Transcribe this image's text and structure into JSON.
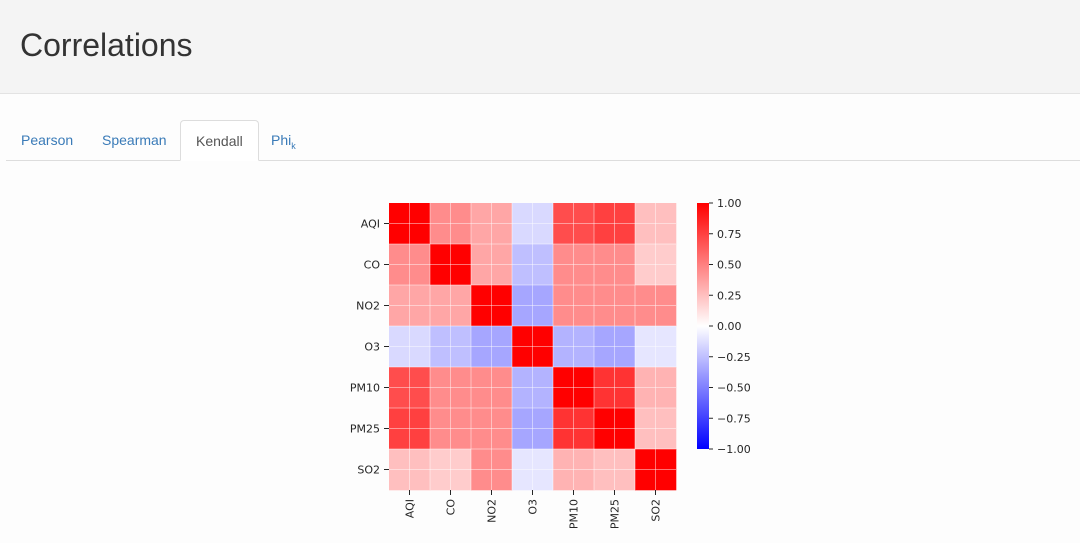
{
  "page": {
    "title": "Correlations"
  },
  "tabs": [
    {
      "label": "Pearson",
      "sub": ""
    },
    {
      "label": "Spearman",
      "sub": ""
    },
    {
      "label": "Kendall",
      "sub": ""
    },
    {
      "label": "Phi",
      "sub": "k"
    }
  ],
  "active_tab": "Kendall",
  "colors": {
    "positive": "#ff0000",
    "neutral": "#ffffff",
    "negative": "#0000ff",
    "tab_link": "#3a7bb8"
  },
  "chart_data": {
    "type": "heatmap",
    "title": "",
    "variables": [
      "AQI",
      "CO",
      "NO2",
      "O3",
      "PM10",
      "PM25",
      "SO2"
    ],
    "matrix": [
      [
        1.0,
        0.45,
        0.35,
        -0.15,
        0.7,
        0.75,
        0.25
      ],
      [
        0.45,
        1.0,
        0.35,
        -0.25,
        0.45,
        0.45,
        0.2
      ],
      [
        0.35,
        0.35,
        1.0,
        -0.35,
        0.45,
        0.45,
        0.45
      ],
      [
        -0.15,
        -0.25,
        -0.35,
        1.0,
        -0.3,
        -0.35,
        -0.1
      ],
      [
        0.7,
        0.45,
        0.45,
        -0.3,
        1.0,
        0.8,
        0.3
      ],
      [
        0.75,
        0.45,
        0.45,
        -0.35,
        0.8,
        1.0,
        0.25
      ],
      [
        0.25,
        0.2,
        0.45,
        -0.1,
        0.3,
        0.25,
        1.0
      ]
    ],
    "colorbar": {
      "range": [
        -1.0,
        1.0
      ],
      "ticks": [
        "1.00",
        "0.75",
        "0.50",
        "0.25",
        "0.00",
        "−0.25",
        "−0.50",
        "−0.75",
        "−1.00"
      ],
      "tick_values": [
        1.0,
        0.75,
        0.5,
        0.25,
        0.0,
        -0.25,
        -0.5,
        -0.75,
        -1.0
      ],
      "colormap": "bwr"
    }
  }
}
